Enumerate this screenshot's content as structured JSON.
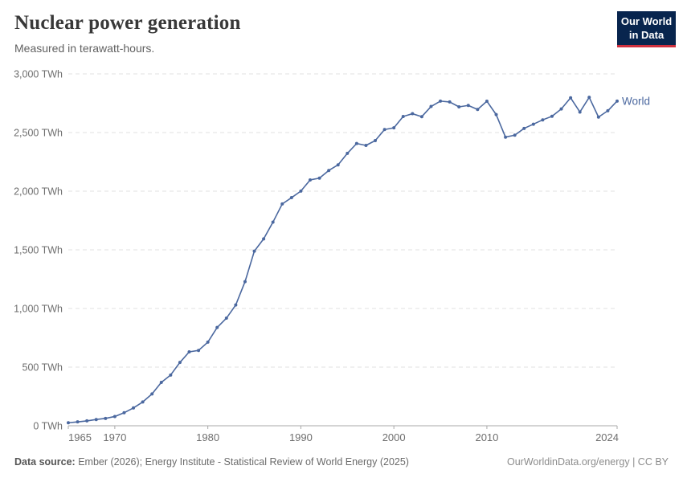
{
  "header": {
    "title": "Nuclear power generation",
    "subtitle": "Measured in terawatt-hours.",
    "logo": {
      "line1": "Our World",
      "line2": "in Data",
      "bg_color": "#08254e",
      "bar_color": "#cf303e"
    }
  },
  "chart_data": {
    "type": "line",
    "title": "Nuclear power generation",
    "subtitle": "Measured in terawatt-hours.",
    "unit": "TWh",
    "xlim": [
      1965,
      2024
    ],
    "ylim": [
      0,
      3000
    ],
    "x_ticks": [
      1965,
      1970,
      1980,
      1990,
      2000,
      2010,
      2024
    ],
    "y_ticks": [
      0,
      500,
      1000,
      1500,
      2000,
      2500,
      3000
    ],
    "grid": "horizontal-dashed",
    "legend_position": "end-of-line-label",
    "colors": {
      "gridline": "#e0e0e0",
      "axis": "#a8a8a8",
      "tick_label": "#6e6e6e"
    },
    "series": [
      {
        "name": "World",
        "color": "#4b689f",
        "x": [
          1965,
          1966,
          1967,
          1968,
          1969,
          1970,
          1971,
          1972,
          1973,
          1974,
          1975,
          1976,
          1977,
          1978,
          1979,
          1980,
          1981,
          1982,
          1983,
          1984,
          1985,
          1986,
          1987,
          1988,
          1989,
          1990,
          1991,
          1992,
          1993,
          1994,
          1995,
          1996,
          1997,
          1998,
          1999,
          2000,
          2001,
          2002,
          2003,
          2004,
          2005,
          2006,
          2007,
          2008,
          2009,
          2010,
          2011,
          2012,
          2013,
          2014,
          2015,
          2016,
          2017,
          2018,
          2019,
          2020,
          2021,
          2022,
          2023,
          2024
        ],
        "values": [
          25.7,
          33.0,
          41.7,
          53.5,
          62.9,
          79.0,
          111.1,
          152.0,
          202.7,
          271.3,
          370.2,
          432.7,
          540.0,
          630.1,
          642.5,
          712.9,
          837.9,
          917.6,
          1029.7,
          1228.8,
          1489.1,
          1593.5,
          1735.9,
          1891.2,
          1944.9,
          2000.7,
          2096.1,
          2111.4,
          2176.4,
          2224.5,
          2322.5,
          2406.6,
          2390.3,
          2431.5,
          2525.8,
          2540.3,
          2637.2,
          2660.6,
          2635.5,
          2722.2,
          2767.9,
          2760.9,
          2719.1,
          2731.3,
          2697.1,
          2767.1,
          2653.2,
          2460.9,
          2477.8,
          2535.4,
          2571.4,
          2608.3,
          2638.9,
          2701.4,
          2796.0,
          2674.8,
          2800.3,
          2631.7,
          2685.7,
          2768.3
        ]
      }
    ]
  },
  "footer": {
    "source_label": "Data source:",
    "source_text": "Ember (2026); Energy Institute - Statistical Review of World Energy (2025)",
    "link_text": "OurWorldinData.org/energy | CC BY"
  }
}
